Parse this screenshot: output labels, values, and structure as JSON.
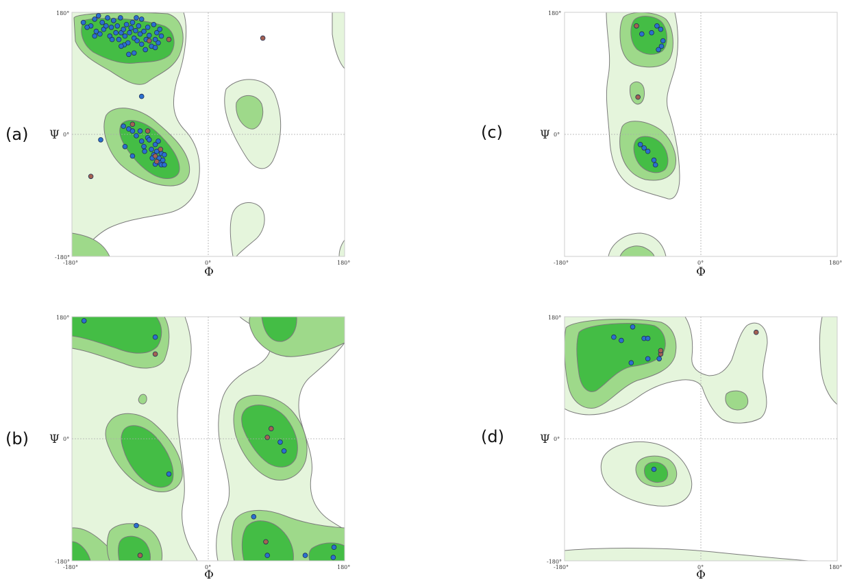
{
  "colors": {
    "region_allowed": "#e5f5dc",
    "region_favoured": "#9ed98a",
    "region_core": "#44bd45",
    "point_normal": "#2b6fcf",
    "point_outlier": "#a46152"
  },
  "chart_data": [
    {
      "type": "scatter",
      "panel_label": "(a)",
      "xlabel": "Φ",
      "ylabel": "Ψ",
      "xlim": [
        -180,
        180
      ],
      "ylim": [
        -180,
        180
      ],
      "x_ticks": [
        "-180°",
        "0°",
        "180°"
      ],
      "y_ticks": [
        "180°",
        "0°",
        "-180°"
      ],
      "grid": "dashed zero lines",
      "series": [
        {
          "kind": "normal",
          "points": [
            [
              -165,
              165
            ],
            [
              -155,
              160
            ],
            [
              -150,
              170
            ],
            [
              -148,
              152
            ],
            [
              -143,
              148
            ],
            [
              -140,
              165
            ],
            [
              -138,
              155
            ],
            [
              -135,
              160
            ],
            [
              -130,
              145
            ],
            [
              -128,
              158
            ],
            [
              -125,
              168
            ],
            [
              -122,
              150
            ],
            [
              -120,
              160
            ],
            [
              -118,
              140
            ],
            [
              -116,
              172
            ],
            [
              -115,
              150
            ],
            [
              -112,
              155
            ],
            [
              -110,
              145
            ],
            [
              -108,
              162
            ],
            [
              -106,
              135
            ],
            [
              -104,
              150
            ],
            [
              -102,
              157
            ],
            [
              -100,
              165
            ],
            [
              -98,
              142
            ],
            [
              -96,
              153
            ],
            [
              -94,
              138
            ],
            [
              -92,
              160
            ],
            [
              -90,
              148
            ],
            [
              -88,
              170
            ],
            [
              -85,
              152
            ],
            [
              -82,
              140
            ],
            [
              -80,
              158
            ],
            [
              -78,
              146
            ],
            [
              -75,
              130
            ],
            [
              -72,
              162
            ],
            [
              -70,
              140
            ],
            [
              -68,
              150
            ],
            [
              -66,
              135
            ],
            [
              -64,
              155
            ],
            [
              -62,
              145
            ],
            [
              -160,
              158
            ],
            [
              -150,
              145
            ],
            [
              -133,
              172
            ],
            [
              -127,
              140
            ],
            [
              -111,
              132
            ],
            [
              -145,
              175
            ],
            [
              -98,
              120
            ],
            [
              -88,
              133
            ],
            [
              -83,
              125
            ],
            [
              -95,
              172
            ],
            [
              -115,
              130
            ],
            [
              -105,
              118
            ],
            [
              -70,
              128
            ],
            [
              -88,
              56
            ],
            [
              -142,
              -8
            ],
            [
              -112,
              12
            ],
            [
              -105,
              8
            ],
            [
              -100,
              5
            ],
            [
              -95,
              -2
            ],
            [
              -90,
              5
            ],
            [
              -88,
              -10
            ],
            [
              -85,
              -18
            ],
            [
              -80,
              -5
            ],
            [
              -75,
              -22
            ],
            [
              -72,
              -30
            ],
            [
              -70,
              -15
            ],
            [
              -68,
              -25
            ],
            [
              -65,
              -35
            ],
            [
              -62,
              -28
            ],
            [
              -64,
              -42
            ],
            [
              -60,
              -38
            ],
            [
              -58,
              -30
            ],
            [
              -66,
              -10
            ],
            [
              -78,
              -8
            ],
            [
              -100,
              -32
            ],
            [
              -84,
              -25
            ],
            [
              -70,
              -44
            ],
            [
              -62,
              -45
            ],
            [
              -110,
              -18
            ],
            [
              -74,
              -35
            ],
            [
              -58,
              -45
            ]
          ]
        },
        {
          "kind": "outlier",
          "points": [
            [
              -155,
              -62
            ],
            [
              -52,
              140
            ],
            [
              72,
              142
            ],
            [
              -100,
              15
            ],
            [
              -80,
              5
            ],
            [
              -63,
              -22
            ],
            [
              -68,
              -40
            ],
            [
              -70,
              -32
            ],
            [
              -78,
              138
            ]
          ]
        }
      ]
    },
    {
      "type": "scatter",
      "panel_label": "(b)",
      "xlabel": "Φ",
      "ylabel": "Ψ",
      "xlim": [
        -180,
        180
      ],
      "ylim": [
        -180,
        180
      ],
      "x_ticks": [
        "-180°",
        "0°",
        "180°"
      ],
      "y_ticks": [
        "180°",
        "0°",
        "-180°"
      ],
      "grid": "dashed zero lines",
      "series": [
        {
          "kind": "normal",
          "points": [
            [
              -164,
              174
            ],
            [
              -70,
              150
            ],
            [
              -52,
              -52
            ],
            [
              -95,
              -128
            ],
            [
              60,
              -115
            ],
            [
              95,
              -5
            ],
            [
              100,
              -18
            ],
            [
              78,
              -172
            ],
            [
              128,
              -172
            ],
            [
              165,
              -175
            ],
            [
              166,
              -160
            ]
          ]
        },
        {
          "kind": "outlier",
          "points": [
            [
              -70,
              125
            ],
            [
              83,
              15
            ],
            [
              78,
              2
            ],
            [
              -90,
              -172
            ],
            [
              76,
              -152
            ]
          ]
        }
      ]
    },
    {
      "type": "scatter",
      "panel_label": "(c)",
      "xlabel": "Φ",
      "ylabel": "Ψ",
      "xlim": [
        -180,
        180
      ],
      "ylim": [
        -180,
        180
      ],
      "x_ticks": [
        "-180°",
        "0°",
        "180°"
      ],
      "y_ticks": [
        "180°",
        "0°"
      ],
      "grid": "dashed zero lines",
      "series": [
        {
          "kind": "normal",
          "points": [
            [
              -78,
              148
            ],
            [
              -65,
              150
            ],
            [
              -58,
              160
            ],
            [
              -53,
              155
            ],
            [
              -50,
              138
            ],
            [
              -52,
              130
            ],
            [
              -56,
              125
            ],
            [
              -80,
              -15
            ],
            [
              -75,
              -20
            ],
            [
              -70,
              -25
            ],
            [
              -62,
              -38
            ],
            [
              -60,
              -45
            ]
          ]
        },
        {
          "kind": "outlier",
          "points": [
            [
              -85,
              160
            ],
            [
              -83,
              55
            ]
          ]
        }
      ]
    },
    {
      "type": "scatter",
      "panel_label": "(d)",
      "xlabel": "Φ",
      "ylabel": "Ψ",
      "xlim": [
        -180,
        180
      ],
      "ylim": [
        -180,
        180
      ],
      "x_ticks": [
        "-180°",
        "0°",
        "180°"
      ],
      "y_ticks": [
        "180°",
        "0°",
        "-180°"
      ],
      "grid": "dashed zero lines",
      "series": [
        {
          "kind": "normal",
          "points": [
            [
              -115,
              150
            ],
            [
              -105,
              145
            ],
            [
              -90,
              165
            ],
            [
              -75,
              148
            ],
            [
              -70,
              148
            ],
            [
              -92,
              112
            ],
            [
              -70,
              118
            ],
            [
              -55,
              118
            ],
            [
              -62,
              -45
            ]
          ]
        },
        {
          "kind": "outlier",
          "points": [
            [
              73,
              157
            ],
            [
              -53,
              125
            ],
            [
              -53,
              130
            ]
          ]
        }
      ]
    }
  ]
}
